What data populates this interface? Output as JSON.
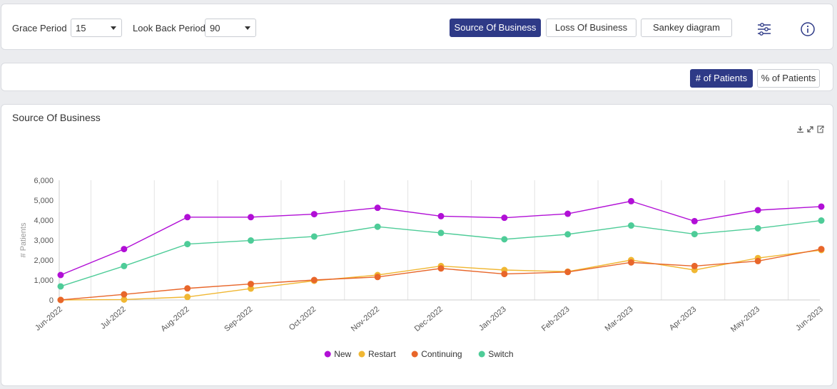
{
  "filters": {
    "grace_period": {
      "label": "Grace Period",
      "value": "15"
    },
    "look_back_period": {
      "label": "Look Back Period",
      "value": "90"
    }
  },
  "view_tabs": {
    "source": "Source Of Business",
    "loss": "Loss Of Business",
    "sankey": "Sankey diagram"
  },
  "icons": {
    "settings": "sliders-icon",
    "info": "info-icon"
  },
  "toggle": {
    "count": "# of Patients",
    "percent": "% of Patients"
  },
  "chart_card": {
    "title": "Source Of Business"
  },
  "colors": {
    "accent": "#2e3a87",
    "New": "#b10fd6",
    "Restart": "#f0b733",
    "Continuing": "#e8662a",
    "Switch": "#4ecc98"
  },
  "chart_data": {
    "type": "line",
    "title": "Source Of Business",
    "ylabel": "# Patients",
    "xlabel": "",
    "ylim": [
      0,
      6000
    ],
    "yticks": [
      "0",
      "1,000",
      "2,000",
      "3,000",
      "4,000",
      "5,000",
      "6,000"
    ],
    "categories": [
      "Jun-2022",
      "Jul-2022",
      "Aug-2022",
      "Sep-2022",
      "Oct-2022",
      "Nov-2022",
      "Dec-2022",
      "Jan-2023",
      "Feb-2023",
      "Mar-2023",
      "Apr-2023",
      "May-2023",
      "Jun-2023"
    ],
    "series": [
      {
        "name": "New",
        "values": [
          1250,
          2550,
          4150,
          4150,
          4300,
          4620,
          4200,
          4120,
          4320,
          4950,
          3950,
          4500,
          4680
        ]
      },
      {
        "name": "Restart",
        "values": [
          0,
          20,
          150,
          570,
          960,
          1250,
          1700,
          1500,
          1420,
          2000,
          1500,
          2100,
          2500
        ]
      },
      {
        "name": "Continuing",
        "values": [
          0,
          280,
          580,
          800,
          1000,
          1150,
          1580,
          1300,
          1400,
          1880,
          1700,
          1950,
          2550
        ]
      },
      {
        "name": "Switch",
        "values": [
          680,
          1700,
          2800,
          2980,
          3180,
          3670,
          3360,
          3040,
          3290,
          3730,
          3300,
          3590,
          3980
        ]
      }
    ],
    "grid": true,
    "legend_position": "bottom"
  }
}
